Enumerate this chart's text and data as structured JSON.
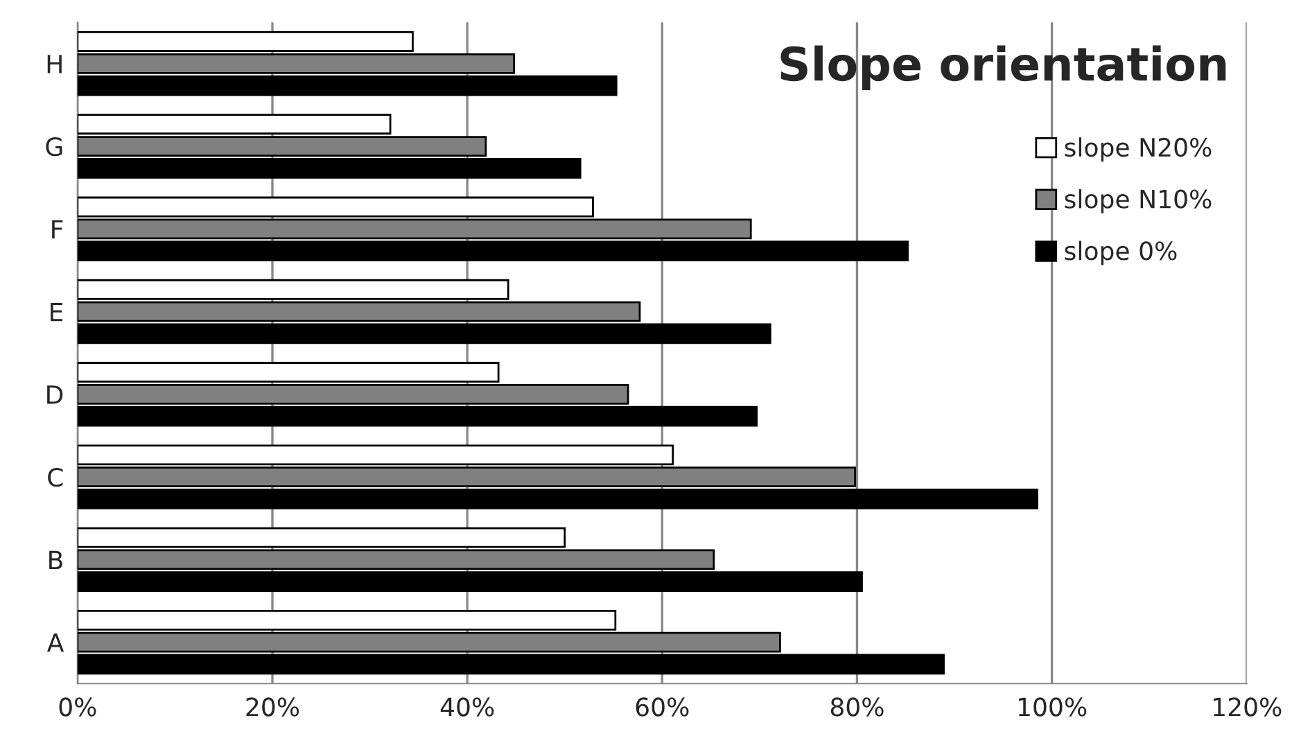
{
  "chart_data": {
    "type": "bar",
    "orientation": "horizontal",
    "title": "Slope orientation",
    "categories": [
      "H",
      "G",
      "F",
      "E",
      "D",
      "C",
      "B",
      "A"
    ],
    "series": [
      {
        "name": "slope N20%",
        "color": "#ffffff",
        "values": [
          34.4,
          32.1,
          52.9,
          44.2,
          43.2,
          61.1,
          50.0,
          55.2
        ]
      },
      {
        "name": "slope N10%",
        "color": "#808080",
        "values": [
          44.8,
          41.9,
          69.1,
          57.7,
          56.5,
          79.8,
          65.3,
          72.1
        ]
      },
      {
        "name": "slope 0%",
        "color": "#000000",
        "values": [
          55.3,
          51.6,
          85.2,
          71.1,
          69.7,
          98.5,
          80.5,
          88.9
        ]
      }
    ],
    "xlim": [
      0,
      120
    ],
    "xticks": [
      {
        "value": 0,
        "label": "0%"
      },
      {
        "value": 20,
        "label": "20%"
      },
      {
        "value": 40,
        "label": "40%"
      },
      {
        "value": 60,
        "label": "60%"
      },
      {
        "value": 80,
        "label": "80%"
      },
      {
        "value": 100,
        "label": "100%"
      },
      {
        "value": 120,
        "label": "120%"
      }
    ],
    "grid": "x",
    "legend": "top right"
  }
}
